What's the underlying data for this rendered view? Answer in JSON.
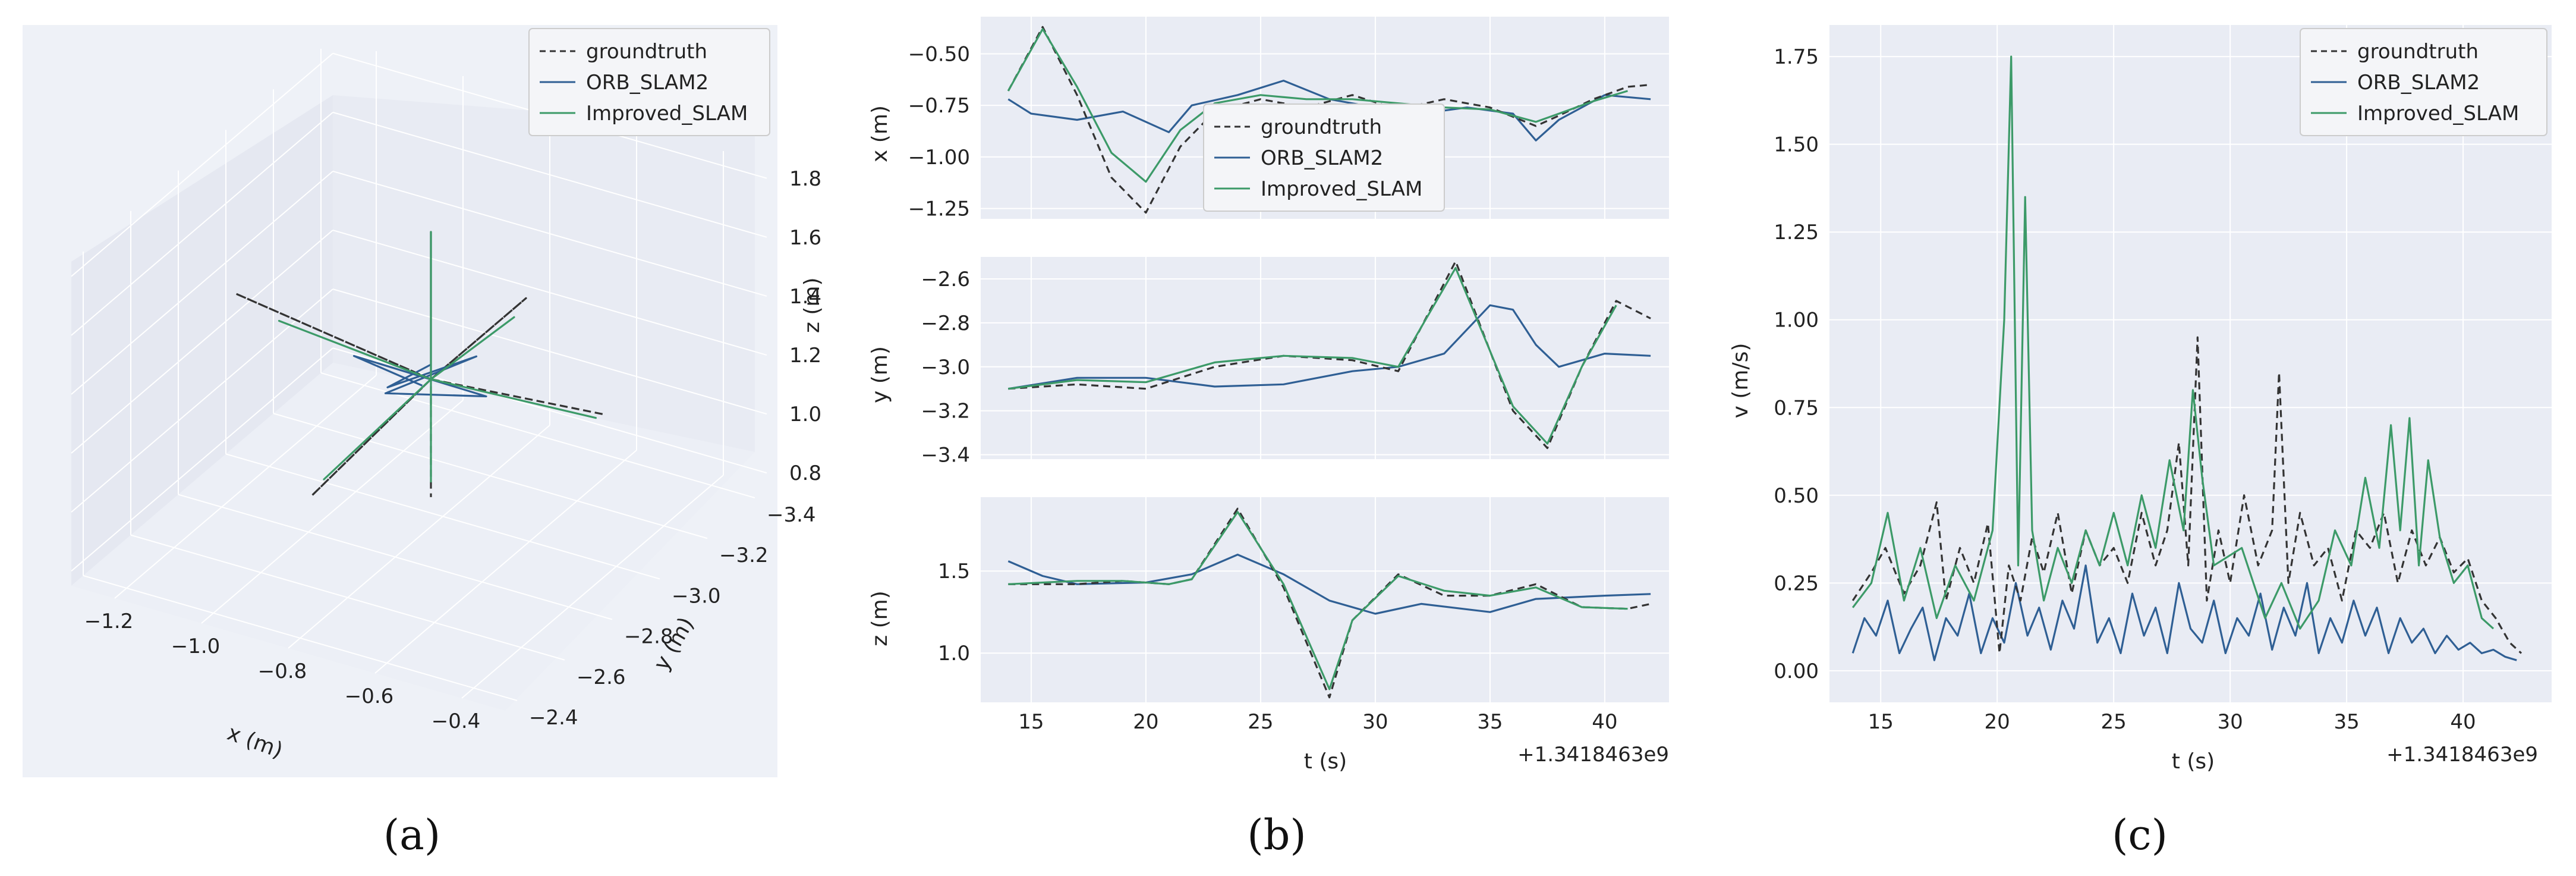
{
  "colors": {
    "groundtruth": "#333333",
    "orb": "#2f5f94",
    "improved": "#3c9a68",
    "panel_bg": "#e9ecf4",
    "grid": "#ffffff"
  },
  "legend": [
    "groundtruth",
    "ORB_SLAM2",
    "Improved_SLAM"
  ],
  "captions": [
    "(a)",
    "(b)",
    "(c)"
  ],
  "chart_data": [
    {
      "id": "a",
      "type": "line3d",
      "series": [
        "groundtruth",
        "ORB_SLAM2",
        "Improved_SLAM"
      ],
      "x_ticks": [
        "−1.2",
        "−1.0",
        "−0.8",
        "−0.6",
        "−0.4"
      ],
      "y_ticks": [
        "−2.4",
        "−2.6",
        "−2.8",
        "−3.0",
        "−3.2",
        "−3.4"
      ],
      "z_ticks": [
        "1.8",
        "1.6",
        "1.4",
        "1.2",
        "1.0",
        "0.8"
      ],
      "xlabel": "x (m)",
      "ylabel": "y (m)",
      "zlabel": "z (m)",
      "xlim": [
        -1.3,
        -0.3
      ],
      "ylim": [
        -3.45,
        -2.35
      ],
      "zlim": [
        0.75,
        1.85
      ],
      "segments": [
        {
          "name": "groundtruth",
          "points": [
            [
              -0.8,
              -2.95,
              1.25
            ],
            [
              -1.25,
              -2.95,
              1.35
            ],
            [
              -0.8,
              -2.95,
              1.25
            ],
            [
              -0.4,
              -2.95,
              1.3
            ],
            [
              -0.8,
              -2.95,
              1.25
            ],
            [
              -0.8,
              -2.45,
              1.2
            ],
            [
              -0.8,
              -2.95,
              1.25
            ],
            [
              -0.8,
              -3.35,
              1.25
            ],
            [
              -0.8,
              -2.95,
              1.25
            ],
            [
              -0.8,
              -2.95,
              1.75
            ],
            [
              -0.8,
              -2.95,
              1.25
            ],
            [
              -0.8,
              -2.95,
              0.85
            ]
          ]
        },
        {
          "name": "ORB_SLAM2",
          "points": [
            [
              -0.82,
              -2.95,
              1.22
            ],
            [
              -0.95,
              -2.9,
              1.3
            ],
            [
              -0.7,
              -3.0,
              1.2
            ],
            [
              -0.85,
              -2.85,
              1.25
            ],
            [
              -0.75,
              -3.05,
              1.28
            ],
            [
              -0.9,
              -2.95,
              1.18
            ],
            [
              -0.8,
              -2.95,
              1.3
            ]
          ]
        },
        {
          "name": "Improved_SLAM",
          "points": [
            [
              -0.8,
              -2.95,
              1.25
            ],
            [
              -1.15,
              -2.95,
              1.3
            ],
            [
              -0.8,
              -2.95,
              1.25
            ],
            [
              -0.42,
              -2.95,
              1.28
            ],
            [
              -0.8,
              -2.95,
              1.25
            ],
            [
              -0.8,
              -2.5,
              1.22
            ],
            [
              -0.8,
              -2.95,
              1.25
            ],
            [
              -0.8,
              -3.3,
              1.22
            ],
            [
              -0.8,
              -2.95,
              1.25
            ],
            [
              -0.8,
              -2.95,
              1.75
            ],
            [
              -0.8,
              -2.95,
              1.25
            ],
            [
              -0.8,
              -2.95,
              0.9
            ]
          ]
        }
      ]
    },
    {
      "id": "b",
      "type": "line",
      "xlabel": "t (s)",
      "x_offset_label": "+1.3418463e9",
      "x_ticks": [
        "15",
        "20",
        "25",
        "30",
        "35",
        "40"
      ],
      "xlim": [
        12.8,
        42.8
      ],
      "subplots": [
        {
          "ylabel": "x (m)",
          "ylim": [
            -1.3,
            -0.32
          ],
          "y_ticks": [
            "−0.50",
            "−0.75",
            "−1.00",
            "−1.25"
          ],
          "series": [
            {
              "name": "groundtruth",
              "x": [
                14,
                15.5,
                17,
                18.5,
                20,
                21.5,
                23,
                25,
                27,
                29,
                31,
                33,
                35,
                37,
                38,
                39.5,
                41,
                42
              ],
              "y": [
                -0.68,
                -0.37,
                -0.7,
                -1.1,
                -1.27,
                -0.95,
                -0.78,
                -0.72,
                -0.76,
                -0.7,
                -0.77,
                -0.72,
                -0.76,
                -0.85,
                -0.8,
                -0.72,
                -0.66,
                -0.65
              ]
            },
            {
              "name": "ORB_SLAM2",
              "x": [
                14,
                15,
                17,
                19,
                21,
                22,
                24,
                26,
                28,
                30,
                32,
                34,
                36,
                37,
                38,
                40,
                42
              ],
              "y": [
                -0.72,
                -0.79,
                -0.82,
                -0.78,
                -0.88,
                -0.75,
                -0.7,
                -0.63,
                -0.72,
                -0.76,
                -0.79,
                -0.76,
                -0.79,
                -0.92,
                -0.82,
                -0.7,
                -0.72
              ]
            },
            {
              "name": "Improved_SLAM",
              "x": [
                14,
                15.5,
                17,
                18.5,
                20,
                21.5,
                23,
                25,
                27,
                29,
                31,
                33,
                35,
                37,
                38,
                39.5,
                41
              ],
              "y": [
                -0.68,
                -0.38,
                -0.66,
                -0.98,
                -1.12,
                -0.87,
                -0.74,
                -0.7,
                -0.72,
                -0.72,
                -0.74,
                -0.76,
                -0.77,
                -0.83,
                -0.79,
                -0.73,
                -0.68
              ]
            }
          ]
        },
        {
          "ylabel": "y (m)",
          "ylim": [
            -3.42,
            -2.5
          ],
          "y_ticks": [
            "−2.6",
            "−2.8",
            "−3.0",
            "−3.2",
            "−3.4"
          ],
          "series": [
            {
              "name": "groundtruth",
              "x": [
                14,
                17,
                20,
                23,
                26,
                29,
                31,
                33.5,
                36,
                37.5,
                39,
                40.5,
                42
              ],
              "y": [
                -3.1,
                -3.08,
                -3.1,
                -3.0,
                -2.95,
                -2.97,
                -3.02,
                -2.52,
                -3.2,
                -3.37,
                -3.0,
                -2.7,
                -2.78
              ]
            },
            {
              "name": "ORB_SLAM2",
              "x": [
                14,
                17,
                20,
                23,
                26,
                29,
                31,
                33,
                35,
                36,
                37,
                38,
                40,
                42
              ],
              "y": [
                -3.1,
                -3.05,
                -3.05,
                -3.09,
                -3.08,
                -3.02,
                -3.0,
                -2.94,
                -2.72,
                -2.74,
                -2.9,
                -3.0,
                -2.94,
                -2.95
              ]
            },
            {
              "name": "Improved_SLAM",
              "x": [
                14,
                17,
                20,
                23,
                26,
                29,
                31,
                33.5,
                36,
                37.5,
                39,
                40.5
              ],
              "y": [
                -3.1,
                -3.06,
                -3.07,
                -2.98,
                -2.95,
                -2.96,
                -3.0,
                -2.55,
                -3.18,
                -3.35,
                -3.0,
                -2.72
              ]
            }
          ]
        },
        {
          "ylabel": "z (m)",
          "ylim": [
            0.7,
            1.95
          ],
          "y_ticks": [
            "1.5",
            "1.0"
          ],
          "series": [
            {
              "name": "groundtruth",
              "x": [
                14,
                17,
                19,
                21,
                22,
                24,
                26,
                28,
                29,
                31,
                33,
                35,
                37,
                39,
                41,
                42
              ],
              "y": [
                1.42,
                1.42,
                1.44,
                1.42,
                1.45,
                1.88,
                1.4,
                0.73,
                1.2,
                1.48,
                1.35,
                1.35,
                1.42,
                1.28,
                1.27,
                1.3
              ]
            },
            {
              "name": "ORB_SLAM2",
              "x": [
                14,
                15.5,
                17,
                20,
                22,
                24,
                26,
                28,
                30,
                32,
                35,
                37,
                40,
                42
              ],
              "y": [
                1.56,
                1.47,
                1.42,
                1.43,
                1.48,
                1.6,
                1.48,
                1.32,
                1.24,
                1.3,
                1.25,
                1.33,
                1.35,
                1.36
              ]
            },
            {
              "name": "Improved_SLAM",
              "x": [
                14,
                17,
                19,
                21,
                22,
                24,
                26,
                28,
                29,
                31,
                33,
                35,
                37,
                39,
                41
              ],
              "y": [
                1.42,
                1.44,
                1.44,
                1.42,
                1.45,
                1.86,
                1.42,
                0.78,
                1.2,
                1.47,
                1.38,
                1.35,
                1.4,
                1.28,
                1.27
              ]
            }
          ]
        }
      ]
    },
    {
      "id": "c",
      "type": "line",
      "xlabel": "t (s)",
      "ylabel": "v (m/s)",
      "x_offset_label": "+1.3418463e9",
      "x_ticks": [
        "15",
        "20",
        "25",
        "30",
        "35",
        "40"
      ],
      "y_ticks": [
        "1.75",
        "1.50",
        "1.25",
        "1.00",
        "0.75",
        "0.50",
        "0.25",
        "0.00"
      ],
      "xlim": [
        12.8,
        43.8
      ],
      "ylim": [
        -0.09,
        1.84
      ],
      "series": [
        {
          "name": "groundtruth",
          "x": [
            13.8,
            14.6,
            15.2,
            16,
            16.7,
            17.4,
            17.8,
            18.4,
            19,
            19.6,
            20.1,
            20.5,
            21,
            21.5,
            22,
            22.6,
            23.2,
            23.8,
            24.4,
            25,
            25.6,
            26.2,
            26.8,
            27.3,
            27.8,
            28.2,
            28.6,
            29,
            29.5,
            30,
            30.6,
            31.2,
            31.8,
            32.1,
            32.5,
            33,
            33.6,
            34.2,
            34.8,
            35.4,
            36,
            36.6,
            37.2,
            37.8,
            38.4,
            39,
            39.6,
            40.2,
            40.8,
            41.4,
            42,
            42.5
          ],
          "y": [
            0.2,
            0.28,
            0.35,
            0.22,
            0.3,
            0.48,
            0.2,
            0.35,
            0.25,
            0.42,
            0.05,
            0.3,
            0.2,
            0.38,
            0.28,
            0.45,
            0.22,
            0.4,
            0.3,
            0.35,
            0.25,
            0.45,
            0.3,
            0.4,
            0.65,
            0.3,
            0.95,
            0.2,
            0.4,
            0.25,
            0.5,
            0.3,
            0.4,
            0.85,
            0.25,
            0.45,
            0.3,
            0.35,
            0.2,
            0.4,
            0.35,
            0.45,
            0.25,
            0.4,
            0.3,
            0.38,
            0.28,
            0.32,
            0.2,
            0.15,
            0.08,
            0.05
          ]
        },
        {
          "name": "ORB_SLAM2",
          "x": [
            13.8,
            14.3,
            14.8,
            15.3,
            15.8,
            16.3,
            16.8,
            17.3,
            17.8,
            18.3,
            18.8,
            19.3,
            19.8,
            20.3,
            20.8,
            21.3,
            21.8,
            22.3,
            22.8,
            23.3,
            23.8,
            24.3,
            24.8,
            25.3,
            25.8,
            26.3,
            26.8,
            27.3,
            27.8,
            28.3,
            28.8,
            29.3,
            29.8,
            30.3,
            30.8,
            31.3,
            31.8,
            32.3,
            32.8,
            33.3,
            33.8,
            34.3,
            34.8,
            35.3,
            35.8,
            36.3,
            36.8,
            37.3,
            37.8,
            38.3,
            38.8,
            39.3,
            39.8,
            40.3,
            40.8,
            41.3,
            41.8,
            42.3
          ],
          "y": [
            0.05,
            0.15,
            0.1,
            0.2,
            0.05,
            0.12,
            0.18,
            0.03,
            0.15,
            0.1,
            0.22,
            0.05,
            0.15,
            0.08,
            0.25,
            0.1,
            0.18,
            0.06,
            0.2,
            0.12,
            0.3,
            0.08,
            0.15,
            0.05,
            0.22,
            0.1,
            0.18,
            0.05,
            0.25,
            0.12,
            0.08,
            0.2,
            0.05,
            0.15,
            0.1,
            0.22,
            0.06,
            0.18,
            0.1,
            0.25,
            0.05,
            0.15,
            0.08,
            0.2,
            0.1,
            0.18,
            0.05,
            0.15,
            0.08,
            0.12,
            0.05,
            0.1,
            0.06,
            0.08,
            0.05,
            0.06,
            0.04,
            0.03
          ]
        },
        {
          "name": "Improved_SLAM",
          "x": [
            13.8,
            14.6,
            15.3,
            16,
            16.7,
            17.4,
            18.2,
            19,
            19.8,
            20.3,
            20.6,
            20.9,
            21.2,
            21.5,
            22,
            22.6,
            23.2,
            23.8,
            24.4,
            25,
            25.6,
            26.2,
            26.8,
            27.4,
            28,
            28.4,
            28.8,
            29.3,
            30.5,
            31.5,
            32.2,
            33,
            33.8,
            34.5,
            35.2,
            35.8,
            36.4,
            36.9,
            37.3,
            37.7,
            38.1,
            38.5,
            39,
            39.6,
            40.2,
            40.8,
            41.3
          ],
          "y": [
            0.18,
            0.25,
            0.45,
            0.2,
            0.35,
            0.15,
            0.3,
            0.2,
            0.4,
            1.0,
            1.75,
            0.3,
            1.35,
            0.4,
            0.2,
            0.35,
            0.25,
            0.4,
            0.3,
            0.45,
            0.3,
            0.5,
            0.35,
            0.6,
            0.4,
            0.8,
            0.55,
            0.3,
            0.35,
            0.15,
            0.25,
            0.12,
            0.2,
            0.4,
            0.3,
            0.55,
            0.35,
            0.7,
            0.4,
            0.72,
            0.3,
            0.6,
            0.38,
            0.25,
            0.3,
            0.15,
            0.12
          ]
        }
      ]
    }
  ]
}
